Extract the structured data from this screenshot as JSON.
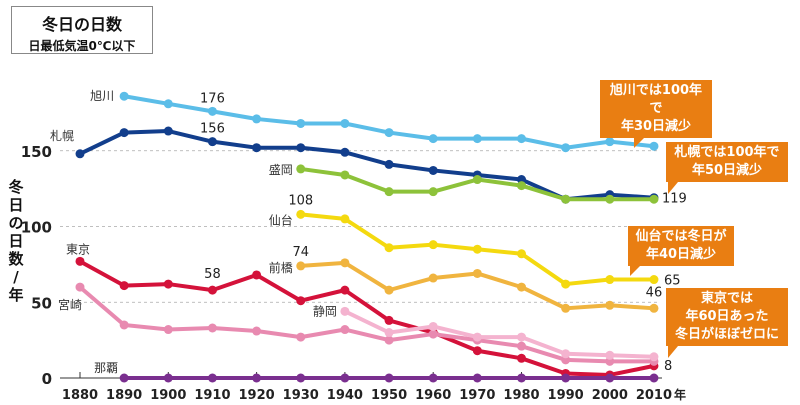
{
  "chart_data": {
    "type": "line",
    "title": "冬日の日数",
    "subtitle": "日最低気温0℃以下",
    "xlabel": "年",
    "ylabel": "冬日の日数／年",
    "x": [
      1880,
      1890,
      1900,
      1910,
      1920,
      1930,
      1940,
      1950,
      1960,
      1970,
      1980,
      1990,
      2000,
      2010
    ],
    "x_tick_labels": [
      "1880",
      "1890",
      "1900",
      "1910",
      "1920",
      "1930",
      "1940",
      "1950",
      "1960",
      "1970",
      "1980",
      "1990",
      "2000",
      "2010"
    ],
    "x_unit_label": "年",
    "y_ticks": [
      0,
      50,
      100,
      150
    ],
    "y_tick_labels": [
      "0",
      "50",
      "100",
      "150"
    ],
    "ylim": [
      0,
      190
    ],
    "grid": "horizontal dashed at 50,100,150",
    "series": [
      {
        "name": "旭川",
        "color": "#5bbde8",
        "values": [
          null,
          186,
          181,
          176,
          171,
          168,
          168,
          162,
          158,
          158,
          158,
          152,
          156,
          153
        ]
      },
      {
        "name": "札幌",
        "color": "#123e8c",
        "values": [
          148,
          162,
          163,
          156,
          152,
          152,
          149,
          141,
          137,
          134,
          131,
          118,
          121,
          119
        ]
      },
      {
        "name": "盛岡",
        "color": "#8dc23a",
        "values": [
          null,
          null,
          null,
          null,
          null,
          138,
          134,
          123,
          123,
          131,
          127,
          118,
          118,
          118
        ]
      },
      {
        "name": "仙台",
        "color": "#f4d90f",
        "values": [
          null,
          null,
          null,
          null,
          null,
          108,
          105,
          86,
          88,
          85,
          82,
          62,
          65,
          65
        ]
      },
      {
        "name": "前橋",
        "color": "#f0b43f",
        "values": [
          null,
          null,
          null,
          null,
          null,
          74,
          76,
          58,
          66,
          69,
          60,
          46,
          48,
          46
        ]
      },
      {
        "name": "東京",
        "color": "#d4123a",
        "values": [
          77,
          61,
          62,
          58,
          68,
          51,
          58,
          38,
          30,
          18,
          13,
          3,
          2,
          8
        ]
      },
      {
        "name": "宮崎",
        "color": "#e88ab0",
        "values": [
          60,
          35,
          32,
          33,
          31,
          27,
          32,
          25,
          29,
          25,
          21,
          12,
          11,
          11
        ]
      },
      {
        "name": "静岡",
        "color": "#f4b3cf",
        "values": [
          null,
          null,
          null,
          null,
          null,
          null,
          44,
          30,
          34,
          27,
          27,
          16,
          15,
          14
        ]
      },
      {
        "name": "那覇",
        "color": "#7a2f8f",
        "values": [
          null,
          0,
          0,
          0,
          0,
          0,
          0,
          0,
          0,
          0,
          0,
          0,
          0,
          0
        ]
      }
    ],
    "data_labels": [
      {
        "series": "旭川",
        "x": 1910,
        "text": "176"
      },
      {
        "series": "旭川",
        "x": 2010,
        "text": "153"
      },
      {
        "series": "札幌",
        "x": 1910,
        "text": "156"
      },
      {
        "series": "札幌",
        "x": 2010,
        "text": "119"
      },
      {
        "series": "仙台",
        "x": 1930,
        "text": "108"
      },
      {
        "series": "仙台",
        "x": 2010,
        "text": "65"
      },
      {
        "series": "前橋",
        "x": 1930,
        "text": "74"
      },
      {
        "series": "前橋",
        "x": 2010,
        "text": "46"
      },
      {
        "series": "東京",
        "x": 1910,
        "text": "58"
      },
      {
        "series": "東京",
        "x": 2010,
        "text": "8"
      }
    ],
    "annotations": [
      {
        "lines": [
          "旭川では100年で",
          "年30日減少"
        ]
      },
      {
        "lines": [
          "札幌では100年で",
          "年50日減少"
        ]
      },
      {
        "lines": [
          "仙台では冬日が",
          "年40日減少"
        ]
      },
      {
        "lines": [
          "東京では",
          "年60日あった",
          "冬日がほぼゼロに"
        ]
      }
    ]
  }
}
